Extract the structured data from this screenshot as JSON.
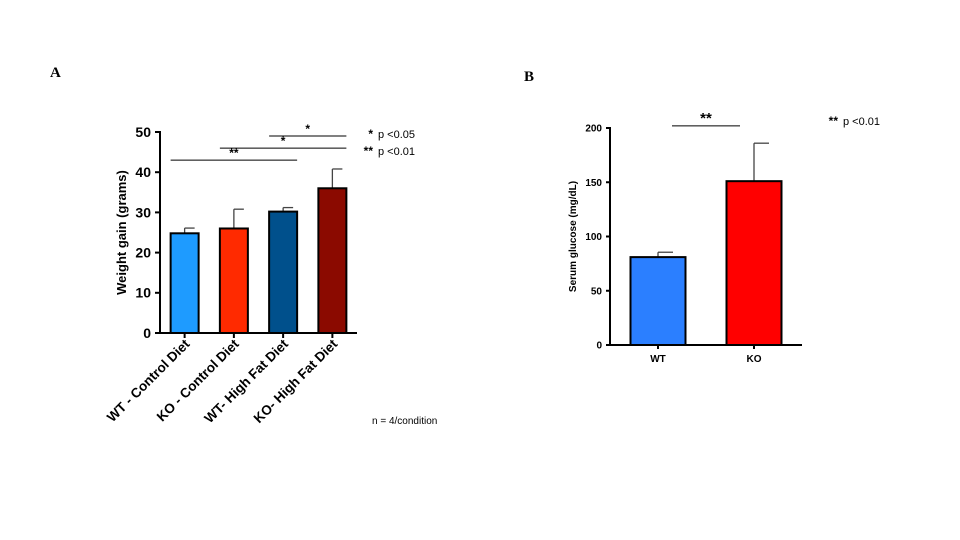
{
  "panels": {
    "a": {
      "letter": "A"
    },
    "b": {
      "letter": "B"
    }
  },
  "chart_data": [
    {
      "type": "bar",
      "panel": "A",
      "title": "",
      "xlabel": "",
      "ylabel": "Weight gain (grams)",
      "ylim": [
        0,
        50
      ],
      "yticks": [
        0,
        10,
        20,
        30,
        40,
        50
      ],
      "categories": [
        "WT - Control Diet",
        "KO - Control Diet",
        "WT- High Fat Diet",
        "KO- High Fat Diet"
      ],
      "values": [
        24.8,
        26.0,
        30.2,
        36.0
      ],
      "errors": [
        1.3,
        4.8,
        1.0,
        4.8
      ],
      "colors": [
        "#1e9bff",
        "#ff2a00",
        "#00508c",
        "#8b0a00"
      ],
      "significance": [
        {
          "from": 0,
          "to": 2,
          "y": 43,
          "label": "**"
        },
        {
          "from": 1,
          "to": 3,
          "y": 46,
          "label": "*"
        },
        {
          "from": 2,
          "to": 3,
          "y": 49,
          "label": "*"
        }
      ],
      "legend": [
        {
          "symbol": "*",
          "text": "p <0.05"
        },
        {
          "symbol": "**",
          "text": "p <0.01"
        }
      ],
      "note": "n = 4/condition"
    },
    {
      "type": "bar",
      "panel": "B",
      "title": "",
      "xlabel": "",
      "ylabel": "Serum glucose (mg/dL)",
      "ylim": [
        0,
        200
      ],
      "yticks": [
        0,
        50,
        100,
        150,
        200
      ],
      "categories": [
        "WT",
        "KO"
      ],
      "values": [
        81,
        151
      ],
      "errors": [
        4.5,
        35
      ],
      "colors": [
        "#2b7fff",
        "#ff0000"
      ],
      "significance": [
        {
          "from": 0,
          "to": 1,
          "y": 202,
          "label": "**"
        }
      ],
      "legend": [
        {
          "symbol": "**",
          "text": "p <0.01"
        }
      ]
    }
  ]
}
